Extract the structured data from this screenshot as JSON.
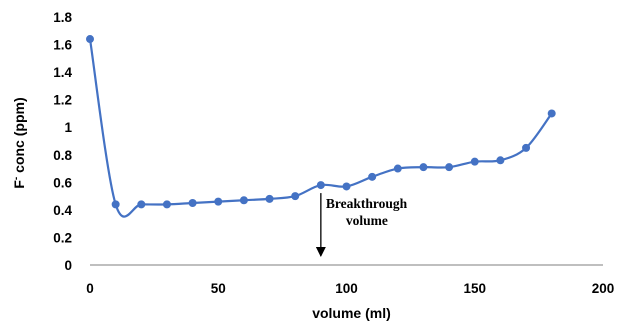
{
  "chart_data": {
    "type": "line",
    "title": "",
    "xlabel": "volume (ml)",
    "ylabel": "F- conc (ppm)",
    "ylabel_prefix": "F",
    "ylabel_superscript": "-",
    "ylabel_suffix": " conc (ppm)",
    "xlim": [
      0,
      200
    ],
    "ylim": [
      0,
      1.8
    ],
    "x_ticks": [
      "0",
      "50",
      "100",
      "150",
      "200"
    ],
    "y_ticks": [
      "0",
      "0.2",
      "0.4",
      "0.6",
      "0.8",
      "1",
      "1.2",
      "1.4",
      "1.6",
      "1.8"
    ],
    "grid": false,
    "legend": "none",
    "smooth": true,
    "series": [
      {
        "color": "#4472C4",
        "x": [
          0,
          10,
          20,
          30,
          40,
          50,
          60,
          70,
          80,
          90,
          100,
          110,
          120,
          130,
          140,
          150,
          160,
          170,
          180
        ],
        "y": [
          1.64,
          0.44,
          0.44,
          0.44,
          0.45,
          0.46,
          0.47,
          0.48,
          0.5,
          0.58,
          0.57,
          0.64,
          0.7,
          0.71,
          0.71,
          0.75,
          0.76,
          0.85,
          1.1
        ]
      }
    ],
    "annotations": [
      {
        "text_line1": "Breakthrough",
        "text_line2": "volume",
        "arrow_x": 90,
        "arrow_from_y": 0.58,
        "arrow_to_y": 0
      }
    ]
  }
}
